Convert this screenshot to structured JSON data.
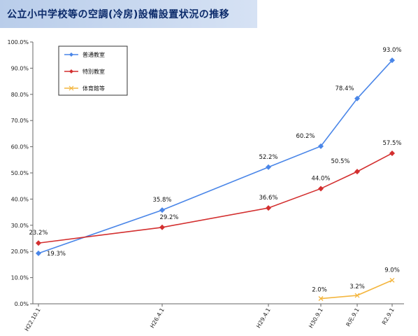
{
  "title": "公立小中学校等の空調(冷房)設備設置状況の推移",
  "chart_data": {
    "type": "line",
    "title": "公立小中学校等の空調(冷房)設備設置状況の推移",
    "xlabel": "",
    "ylabel": "",
    "categories": [
      "H22.10.1",
      "H26.4.1",
      "H29.4.1",
      "H30.9.1",
      "R元.9.1",
      "R2.9.1"
    ],
    "ylim": [
      0,
      100
    ],
    "yticks": [
      "0.0%",
      "10.0%",
      "20.0%",
      "30.0%",
      "40.0%",
      "50.0%",
      "60.0%",
      "70.0%",
      "80.0%",
      "90.0%",
      "100.0%"
    ],
    "grid": false,
    "legend_position": "top-left",
    "series": [
      {
        "name": "普通教室",
        "color": "#4a86e8",
        "marker": "diamond",
        "points": [
          {
            "x": "H22.10.1",
            "y": 19.3,
            "label": "19.3%"
          },
          {
            "x": "H26.4.1",
            "y": 35.8,
            "label": "35.8%"
          },
          {
            "x": "H29.4.1",
            "y": 52.2,
            "label": "52.2%"
          },
          {
            "x": "H30.9.1",
            "y": 60.2,
            "label": "60.2%"
          },
          {
            "x": "R元.9.1",
            "y": 78.4,
            "label": "78.4%"
          },
          {
            "x": "R2.9.1",
            "y": 93.0,
            "label": "93.0%"
          }
        ]
      },
      {
        "name": "特別教室",
        "color": "#d32f2f",
        "marker": "diamond",
        "points": [
          {
            "x": "H22.10.1",
            "y": 23.2,
            "label": "23.2%"
          },
          {
            "x": "H26.4.1",
            "y": 29.2,
            "label": "29.2%"
          },
          {
            "x": "H29.4.1",
            "y": 36.6,
            "label": "36.6%"
          },
          {
            "x": "H30.9.1",
            "y": 44.0,
            "label": "44.0%"
          },
          {
            "x": "R元.9.1",
            "y": 50.5,
            "label": "50.5%"
          },
          {
            "x": "R2.9.1",
            "y": 57.5,
            "label": "57.5%"
          }
        ]
      },
      {
        "name": "体育館等",
        "color": "#f4b63f",
        "marker": "x",
        "points": [
          {
            "x": "H30.9.1",
            "y": 2.0,
            "label": "2.0%"
          },
          {
            "x": "R元.9.1",
            "y": 3.2,
            "label": "3.2%"
          },
          {
            "x": "R2.9.1",
            "y": 9.0,
            "label": "9.0%"
          }
        ]
      }
    ]
  }
}
